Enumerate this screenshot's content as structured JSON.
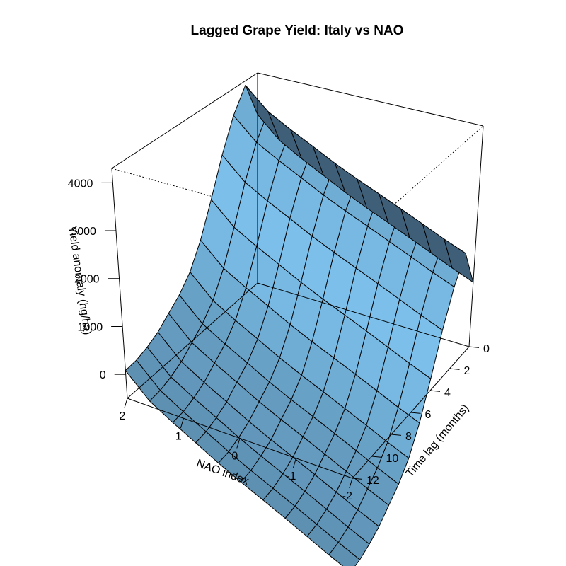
{
  "chart_data": {
    "type": "surface3d",
    "title": "Lagged Grape Yield: Italy vs NAO",
    "xlabel": "NAO index",
    "ylabel": "Time lag (months)",
    "zlabel": "Yield anomaly (hg/ha)",
    "xlim": [
      -2,
      2
    ],
    "ylim": [
      0,
      12
    ],
    "zlim": [
      -500,
      4300
    ],
    "x_ticks": [
      "2",
      "1",
      "0",
      "-1",
      "-2"
    ],
    "y_ticks": [
      "0",
      "2",
      "4",
      "6",
      "8",
      "10",
      "12"
    ],
    "z_ticks": [
      "0",
      "1000",
      "2000",
      "3000",
      "4000"
    ],
    "nao_grid": [
      2.0,
      1.6,
      1.2,
      0.8,
      0.4,
      0.0,
      -0.4,
      -0.8,
      -1.2,
      -1.6,
      -2.0
    ],
    "lag_grid": [
      0,
      1,
      2,
      3,
      4,
      5,
      6,
      7,
      8,
      9,
      10,
      11,
      12
    ],
    "yield_anomaly_grid": [
      [
        3350,
        4200,
        3700,
        3000,
        2200,
        1500,
        1000,
        700,
        500,
        300,
        180,
        100,
        80
      ],
      [
        2880,
        3730,
        3230,
        2530,
        1730,
        1030,
        530,
        230,
        30,
        -170,
        -290,
        -370,
        -390
      ],
      [
        2600,
        3450,
        2950,
        2250,
        1450,
        750,
        250,
        -50,
        -250,
        -450,
        -570,
        -650,
        -670
      ],
      [
        2350,
        3200,
        2700,
        2000,
        1200,
        500,
        0,
        -300,
        -500,
        -700,
        -820,
        -900,
        -920
      ],
      [
        2100,
        2950,
        2450,
        1750,
        950,
        250,
        -250,
        -550,
        -750,
        -950,
        -1070,
        -1150,
        -1170
      ],
      [
        1880,
        2730,
        2230,
        1530,
        730,
        30,
        -470,
        -770,
        -970,
        -1170,
        -1290,
        -1370,
        -1390
      ],
      [
        1680,
        2530,
        2030,
        1330,
        530,
        -170,
        -670,
        -970,
        -1170,
        -1370,
        -1490,
        -1570,
        -1590
      ],
      [
        1480,
        2330,
        1830,
        1130,
        330,
        -370,
        -870,
        -1170,
        -1370,
        -1570,
        -1690,
        -1770,
        -1790
      ],
      [
        1280,
        2130,
        1630,
        930,
        130,
        -570,
        -1070,
        -1370,
        -1570,
        -1770,
        -1890,
        -1970,
        -1990
      ],
      [
        1080,
        1930,
        1430,
        730,
        -70,
        -770,
        -1270,
        -1570,
        -1770,
        -1970,
        -2090,
        -2170,
        -2190
      ],
      [
        900,
        1750,
        1250,
        550,
        -250,
        -950,
        -1450,
        -1750,
        -1950,
        -2150,
        -2270,
        -2350,
        -2370
      ]
    ],
    "colors": {
      "surface_light": "#7BBFEA",
      "surface_dark": "#3F5F78"
    }
  }
}
